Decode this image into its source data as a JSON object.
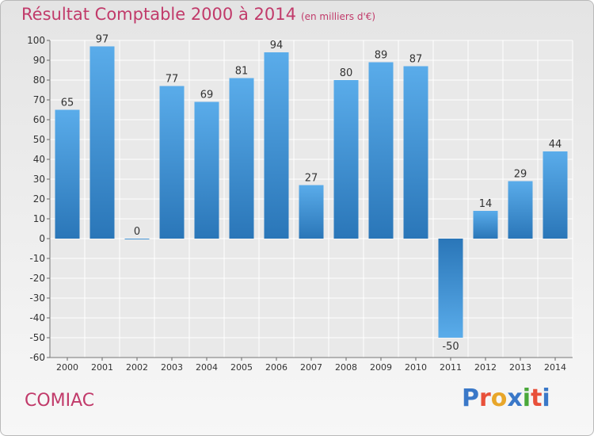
{
  "title": "Résultat Comptable 2000 à 2014",
  "subtitle": "(en milliers d'€)",
  "commune": "COMIAC",
  "logo": {
    "text": "Proxiti",
    "colors": [
      "#3a78c8",
      "#e8503a",
      "#e8a62a",
      "#3a78c8",
      "#4aa83a",
      "#e8503a",
      "#3a78c8"
    ]
  },
  "colors": {
    "bar_top": "#5aacea",
    "bar_bottom": "#2a76b8",
    "grid": "#ffffff",
    "title": "#c13a6a"
  },
  "chart_data": {
    "type": "bar",
    "title": "Résultat Comptable 2000 à 2014",
    "subtitle": "(en milliers d'€)",
    "categories": [
      "2000",
      "2001",
      "2002",
      "2003",
      "2004",
      "2005",
      "2006",
      "2007",
      "2008",
      "2009",
      "2010",
      "2011",
      "2012",
      "2013",
      "2014"
    ],
    "values": [
      65,
      97,
      0,
      77,
      69,
      81,
      94,
      27,
      80,
      89,
      87,
      -50,
      14,
      29,
      44
    ],
    "ylim": [
      -60,
      100
    ],
    "yticks": [
      100,
      90,
      80,
      70,
      60,
      50,
      40,
      30,
      20,
      10,
      0,
      -10,
      -20,
      -30,
      -40,
      -50,
      -60
    ],
    "grid": true,
    "xlabel": "",
    "ylabel": ""
  }
}
